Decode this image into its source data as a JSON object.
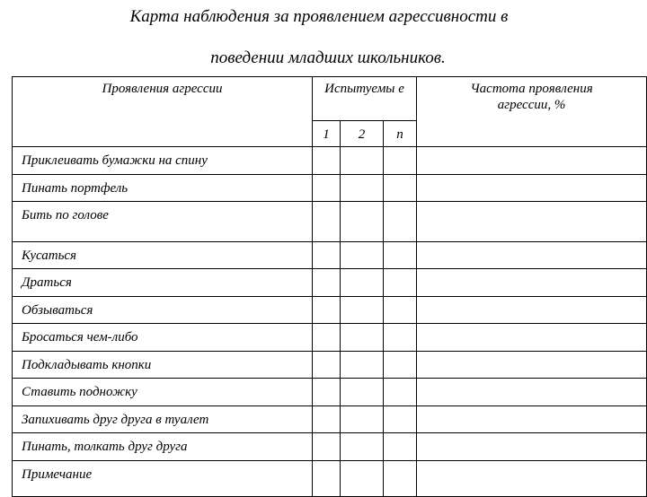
{
  "title_line1": "Карта наблюдения за проявлением агрессивности в",
  "title_line2": "поведении младших школьников.",
  "table": {
    "headers": {
      "manifestations": "Проявления агрессии",
      "subjects": "Испытуемы е",
      "frequency": "Частота проявления агрессии, %",
      "subject_cols": [
        "1",
        "2",
        "n"
      ]
    },
    "rows": [
      "Приклеивать бумажки на спину",
      "Пинать портфель",
      "Бить по голове",
      "Кусаться",
      "Драться",
      "Обзываться",
      "Бросаться чем-либо",
      "Подкладывать кнопки",
      "Ставить подножку",
      "Запихивать друг друга в туалет",
      "Пинать, толкать друг друга",
      "Примечание"
    ]
  }
}
